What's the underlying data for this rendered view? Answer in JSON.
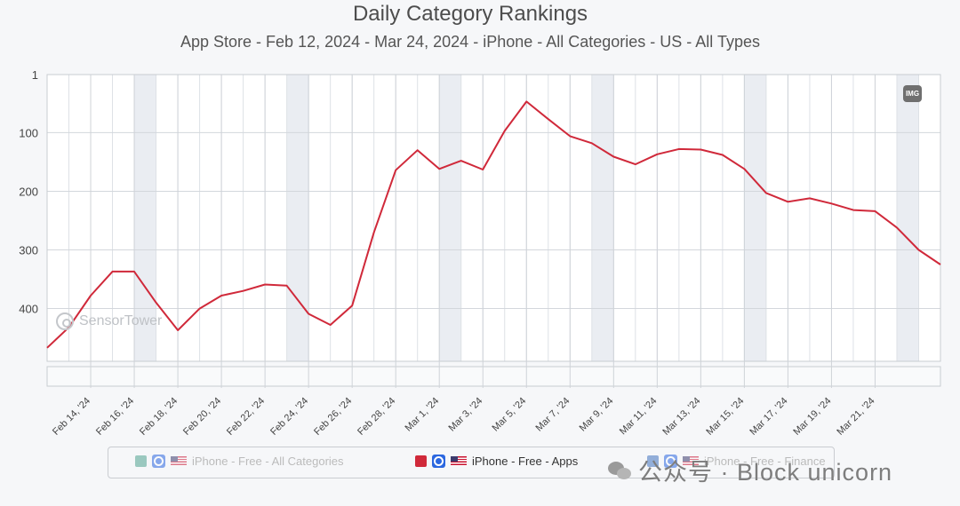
{
  "header": {
    "title": "Daily Category Rankings",
    "subtitle": "App Store - Feb 12, 2024 - Mar 24, 2024 - iPhone - All Categories - US - All Types"
  },
  "chart_data": {
    "type": "line",
    "y_axis": {
      "reversed": true,
      "min": 1,
      "max": 490,
      "ticks": [
        1,
        100,
        200,
        300,
        400
      ]
    },
    "x_tick_labels": [
      "Feb 14, '24",
      "Feb 16, '24",
      "Feb 18, '24",
      "Feb 20, '24",
      "Feb 22, '24",
      "Feb 24, '24",
      "Feb 26, '24",
      "Feb 28, '24",
      "Mar 1, '24",
      "Mar 3, '24",
      "Mar 5, '24",
      "Mar 7, '24",
      "Mar 9, '24",
      "Mar 11, '24",
      "Mar 13, '24",
      "Mar 15, '24",
      "Mar 17, '24",
      "Mar 19, '24",
      "Mar 21, '24"
    ],
    "x": [
      "Feb 12",
      "Feb 13",
      "Feb 14",
      "Feb 15",
      "Feb 16",
      "Feb 17",
      "Feb 18",
      "Feb 19",
      "Feb 20",
      "Feb 21",
      "Feb 22",
      "Feb 23",
      "Feb 24",
      "Feb 25",
      "Feb 26",
      "Feb 27",
      "Feb 28",
      "Feb 29",
      "Mar 1",
      "Mar 2",
      "Mar 3",
      "Mar 4",
      "Mar 5",
      "Mar 6",
      "Mar 7",
      "Mar 8",
      "Mar 9",
      "Mar 10",
      "Mar 11",
      "Mar 12",
      "Mar 13",
      "Mar 14",
      "Mar 15",
      "Mar 16",
      "Mar 17",
      "Mar 18",
      "Mar 19",
      "Mar 20",
      "Mar 21",
      "Mar 22",
      "Mar 23",
      "Mar 24"
    ],
    "weekend_bands": [
      [
        "Feb 16",
        "Feb 17"
      ],
      [
        "Feb 23",
        "Feb 24"
      ],
      [
        "Mar 1",
        "Mar 2"
      ],
      [
        "Mar 8",
        "Mar 9"
      ],
      [
        "Mar 15",
        "Mar 16"
      ],
      [
        "Mar 22",
        "Mar 23"
      ]
    ],
    "series": [
      {
        "name": "iPhone - Free - Apps",
        "color": "#d0293a",
        "values": [
          467,
          432,
          378,
          337,
          337,
          390,
          437,
          400,
          378,
          370,
          359,
          361,
          409,
          428,
          395,
          270,
          164,
          130,
          162,
          148,
          163,
          97,
          47,
          77,
          106,
          118,
          141,
          154,
          137,
          128,
          129,
          138,
          162,
          203,
          218,
          212,
          221,
          232,
          234,
          262,
          300,
          325
        ]
      }
    ],
    "legend": {
      "placement": "bottom",
      "items": [
        {
          "label": "iPhone - Free - All Categories",
          "color": "#4ea38f",
          "enabled": false
        },
        {
          "label": "iPhone - Free - Apps",
          "color": "#d0293a",
          "enabled": true
        },
        {
          "label": "iPhone - Free - Finance",
          "color": "#3f73c0",
          "enabled": false
        }
      ]
    },
    "grid": true
  },
  "overlays": {
    "watermark": "SensorTower",
    "img_badge": "IMG",
    "wechat_text": "公众号 · Block unicorn"
  }
}
